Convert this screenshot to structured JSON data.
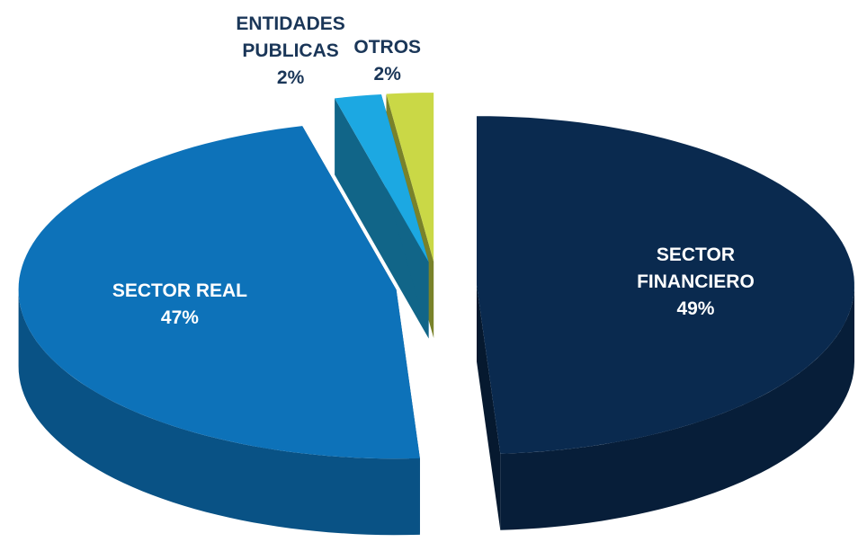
{
  "chart_data": {
    "type": "pie3d",
    "categories": [
      "SECTOR FINANCIERO",
      "SECTOR REAL",
      "ENTIDADES PUBLICAS",
      "OTROS"
    ],
    "values": [
      49,
      47,
      2,
      2
    ],
    "value_labels": [
      "49%",
      "47%",
      "2%",
      "2%"
    ],
    "colors": [
      "#0a2a4f",
      "#0d72b9",
      "#1ca8e2",
      "#cad846"
    ]
  }
}
